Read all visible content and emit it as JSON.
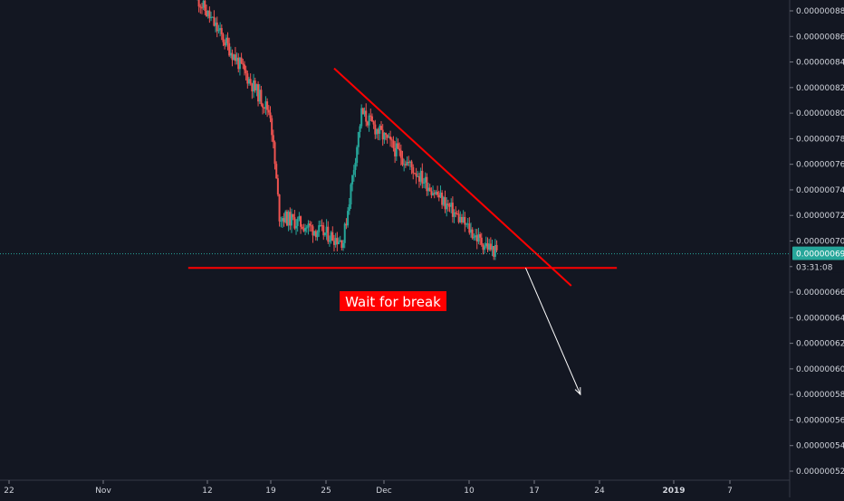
{
  "chart_data": {
    "type": "candlestick",
    "price_axis": {
      "ticks": [
        "0.00000052",
        "0.00000054",
        "0.00000056",
        "0.00000058",
        "0.00000060",
        "0.00000062",
        "0.00000064",
        "0.00000066",
        "0.00000068",
        "0.00000070",
        "0.00000072",
        "0.00000074",
        "0.00000076",
        "0.00000078",
        "0.00000080",
        "0.00000082",
        "0.00000084",
        "0.00000086",
        "0.00000088"
      ],
      "last_price_label": "0.00000069",
      "countdown_label": "03:31:08"
    },
    "time_axis": {
      "ticks": [
        "22",
        "Nov",
        "12",
        "19",
        "25",
        "Dec",
        "10",
        "17",
        "24",
        "2019",
        "7"
      ],
      "bold_ticks": [
        "2019"
      ]
    },
    "annotation": {
      "text": "Wait for break",
      "bg_color": "#ff0000",
      "text_color": "#ffffff"
    },
    "colors": {
      "background": "#131722",
      "up": "#26a69a",
      "down": "#ef5350",
      "trendline": "#ff0000",
      "arrow": "#ffffff",
      "last_price": "#26a69a"
    },
    "drawings": {
      "resistance_line": {
        "from": [
          "Nov 26",
          8.35e-07
        ],
        "to": [
          "Dec 22",
          6.65e-07
        ]
      },
      "support_line": {
        "from": [
          "Nov 10",
          6.79e-07
        ],
        "to": [
          "Dec 27",
          6.79e-07
        ]
      },
      "projection_arrow": {
        "from": [
          "Dec 17",
          6.79e-07
        ],
        "to": [
          "Dec 23",
          5.8e-07
        ]
      }
    },
    "candles_approx": {
      "note_key": "open_close_pairs",
      "segments": [
        {
          "range": [
            "Nov 11",
            "Nov 19"
          ],
          "from": 8.9e-07,
          "to": 8e-07
        },
        {
          "range": [
            "Nov 19",
            "Nov 20"
          ],
          "from": 8e-07,
          "to": 7.2e-07
        },
        {
          "range": [
            "Nov 20",
            "Nov 27"
          ],
          "from": 7.2e-07,
          "to": 7e-07
        },
        {
          "range": [
            "Nov 27",
            "Nov 29"
          ],
          "from": 7e-07,
          "to": 8e-07
        },
        {
          "range": [
            "Nov 29",
            "Dec 12"
          ],
          "from": 8e-07,
          "to": 7e-07
        },
        {
          "range": [
            "Dec 12",
            "Dec 14"
          ],
          "from": 7e-07,
          "to": 6.9e-07
        }
      ]
    }
  }
}
